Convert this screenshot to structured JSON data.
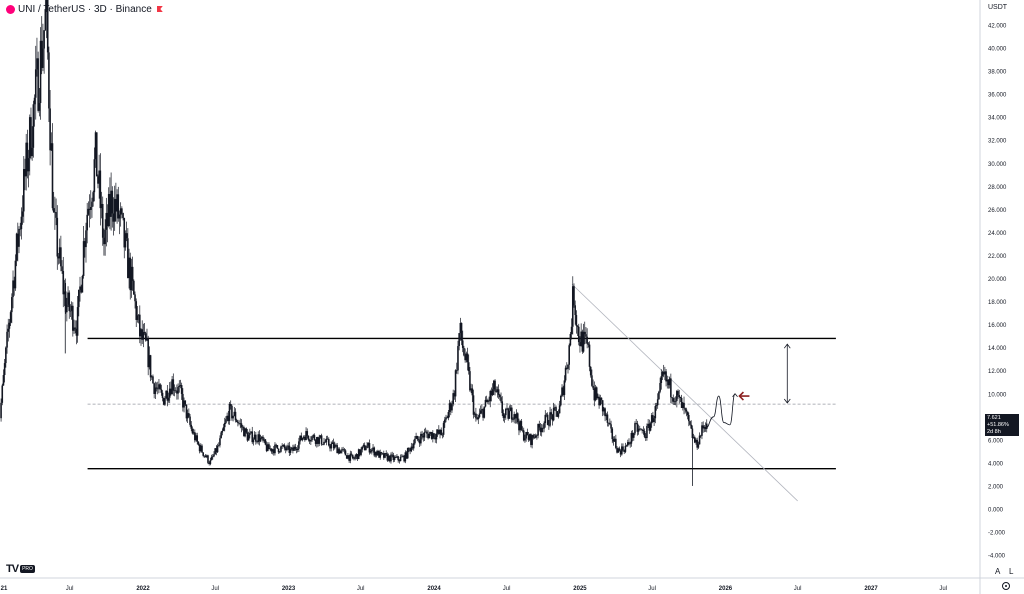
{
  "header": {
    "title": "UNI / TetherUS · 3D · Binance"
  },
  "price_axis": {
    "currency": "USDT"
  },
  "last_price": {
    "price": "7.621",
    "change": "+51.86%",
    "countdown": "2d 8h"
  },
  "branding": {
    "logo_text": "TV",
    "badge": "PRO"
  },
  "modes": {
    "auto": "A",
    "log": "L"
  },
  "colors": {
    "candle": "#131722",
    "lines": "#000000",
    "dashed": "#9598a1",
    "trend": "#b2b5be",
    "arrow": "#8b1e1e"
  },
  "chart_data": {
    "type": "candlestick",
    "title": "UNI / TetherUS · 3D · Binance",
    "y_ticks": [
      "-4.000",
      "-2.000",
      "0.000",
      "2.000",
      "4.000",
      "6.000",
      "8.000",
      "10.000",
      "12.000",
      "14.000",
      "16.000",
      "18.000",
      "20.000",
      "22.000",
      "24.000",
      "26.000",
      "28.000",
      "30.000",
      "32.000",
      "34.000",
      "36.000",
      "38.000",
      "40.000",
      "42.000"
    ],
    "ylim": [
      -6.0,
      43.5
    ],
    "x_ticks": [
      "21",
      "Jul",
      "2022",
      "Jul",
      "2023",
      "Jul",
      "2024",
      "Jul",
      "2025",
      "Jul",
      "2026",
      "Jul",
      "2027",
      "Jul"
    ],
    "xlim": [
      "2021-01-01",
      "2027-07-15"
    ],
    "price_path": [
      [
        "2021-01-01",
        6.0
      ],
      [
        "2021-02-10",
        20.0
      ],
      [
        "2021-03-15",
        30.0
      ],
      [
        "2021-04-15",
        38.0
      ],
      [
        "2021-05-03",
        43.0
      ],
      [
        "2021-05-22",
        25.0
      ],
      [
        "2021-06-20",
        18.0
      ],
      [
        "2021-07-20",
        16.0
      ],
      [
        "2021-08-10",
        25.0
      ],
      [
        "2021-09-05",
        30.5
      ],
      [
        "2021-09-25",
        23.0
      ],
      [
        "2021-10-15",
        27.0
      ],
      [
        "2021-11-05",
        25.0
      ],
      [
        "2021-12-01",
        20.0
      ],
      [
        "2021-12-25",
        15.0
      ],
      [
        "2022-01-10",
        14.0
      ],
      [
        "2022-01-25",
        11.0
      ],
      [
        "2022-02-20",
        9.5
      ],
      [
        "2022-03-15",
        11.0
      ],
      [
        "2022-04-05",
        10.0
      ],
      [
        "2022-05-01",
        7.0
      ],
      [
        "2022-05-20",
        5.5
      ],
      [
        "2022-06-18",
        4.0
      ],
      [
        "2022-07-10",
        5.5
      ],
      [
        "2022-08-05",
        8.5
      ],
      [
        "2022-08-20",
        8.0
      ],
      [
        "2022-09-20",
        6.3
      ],
      [
        "2022-10-20",
        6.2
      ],
      [
        "2022-11-09",
        5.2
      ],
      [
        "2022-12-15",
        5.3
      ],
      [
        "2023-01-10",
        5.0
      ],
      [
        "2023-02-10",
        6.5
      ],
      [
        "2023-03-20",
        6.0
      ],
      [
        "2023-05-01",
        5.3
      ],
      [
        "2023-06-12",
        4.3
      ],
      [
        "2023-07-15",
        5.5
      ],
      [
        "2023-08-20",
        4.6
      ],
      [
        "2023-10-01",
        4.3
      ],
      [
        "2023-10-20",
        4.5
      ],
      [
        "2023-11-10",
        5.8
      ],
      [
        "2023-12-10",
        6.5
      ],
      [
        "2024-01-20",
        6.5
      ],
      [
        "2024-02-20",
        10.0
      ],
      [
        "2024-03-05",
        15.5
      ],
      [
        "2024-03-25",
        12.0
      ],
      [
        "2024-04-15",
        7.5
      ],
      [
        "2024-05-10",
        9.0
      ],
      [
        "2024-06-01",
        10.5
      ],
      [
        "2024-06-25",
        8.0
      ],
      [
        "2024-07-20",
        8.5
      ],
      [
        "2024-08-10",
        6.5
      ],
      [
        "2024-09-01",
        6.0
      ],
      [
        "2024-10-01",
        7.5
      ],
      [
        "2024-11-10",
        8.5
      ],
      [
        "2024-12-05",
        14.0
      ],
      [
        "2024-12-16",
        19.0
      ],
      [
        "2024-12-28",
        15.0
      ],
      [
        "2025-01-20",
        14.0
      ],
      [
        "2025-02-05",
        10.0
      ],
      [
        "2025-02-25",
        9.0
      ],
      [
        "2025-03-20",
        6.5
      ],
      [
        "2025-04-08",
        5.0
      ],
      [
        "2025-05-01",
        5.5
      ],
      [
        "2025-05-20",
        7.0
      ],
      [
        "2025-06-15",
        6.5
      ],
      [
        "2025-07-15",
        9.0
      ],
      [
        "2025-07-28",
        11.5
      ],
      [
        "2025-08-15",
        10.5
      ],
      [
        "2025-09-05",
        9.5
      ],
      [
        "2025-09-25",
        8.0
      ],
      [
        "2025-10-08",
        6.5
      ],
      [
        "2025-10-20",
        5.5
      ],
      [
        "2025-11-05",
        7.0
      ],
      [
        "2025-11-15",
        7.6
      ]
    ],
    "wicks": [
      {
        "date": "2025-10-10",
        "low": 2.0,
        "high": 6.5
      },
      {
        "date": "2021-06-20",
        "low": 13.5,
        "high": 20.0
      }
    ],
    "support": {
      "price": 3.5,
      "from": "2021-08-15",
      "to": "2026-10-05"
    },
    "resistance": {
      "price": 14.8,
      "from": "2021-08-15",
      "to": "2026-10-05"
    },
    "mid_level_dashed": {
      "price": 9.1,
      "from": "2021-08-15",
      "to": "2026-10-05"
    },
    "trendline": {
      "from": [
        "2024-12-12",
        19.5
      ],
      "to": [
        "2026-07-01",
        0.7
      ]
    },
    "projection": [
      [
        "2025-11-12",
        7.0
      ],
      [
        "2025-12-02",
        8.0
      ],
      [
        "2025-12-15",
        9.8
      ],
      [
        "2025-12-28",
        7.5
      ],
      [
        "2026-01-12",
        7.3
      ],
      [
        "2026-01-25",
        10.0
      ]
    ],
    "target_arrow": {
      "date": "2026-06-05",
      "from": 9.2,
      "to": 14.3
    },
    "marker_arrow": {
      "date": "2026-02-05",
      "price": 9.8,
      "direction": "left"
    }
  }
}
